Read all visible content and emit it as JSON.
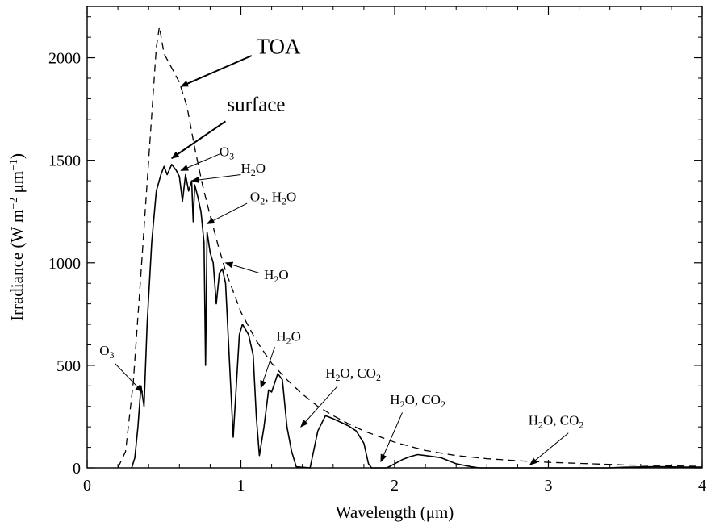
{
  "chart_data": {
    "type": "line",
    "title": "",
    "xlabel": "Wavelength (μm)",
    "ylabel_parts": {
      "main": "Irradiance (W m",
      "exp1": "−2",
      "mid": " μm",
      "exp2": "−1",
      "end": ")"
    },
    "xlim": [
      0,
      4
    ],
    "ylim": [
      0,
      2250
    ],
    "x_ticks": [
      0,
      1,
      2,
      3,
      4
    ],
    "y_ticks": [
      0,
      500,
      1000,
      1500,
      2000
    ],
    "grid": false,
    "series": [
      {
        "name": "TOA",
        "style": "dashed",
        "points": [
          [
            0.2,
            0
          ],
          [
            0.25,
            80
          ],
          [
            0.3,
            420
          ],
          [
            0.35,
            950
          ],
          [
            0.4,
            1500
          ],
          [
            0.45,
            2050
          ],
          [
            0.47,
            2150
          ],
          [
            0.5,
            2020
          ],
          [
            0.55,
            1950
          ],
          [
            0.6,
            1880
          ],
          [
            0.65,
            1760
          ],
          [
            0.7,
            1560
          ],
          [
            0.75,
            1380
          ],
          [
            0.8,
            1230
          ],
          [
            0.85,
            1090
          ],
          [
            0.9,
            960
          ],
          [
            0.95,
            860
          ],
          [
            1.0,
            760
          ],
          [
            1.1,
            620
          ],
          [
            1.2,
            510
          ],
          [
            1.3,
            430
          ],
          [
            1.4,
            360
          ],
          [
            1.5,
            300
          ],
          [
            1.6,
            255
          ],
          [
            1.7,
            215
          ],
          [
            1.8,
            180
          ],
          [
            2.0,
            125
          ],
          [
            2.2,
            85
          ],
          [
            2.4,
            60
          ],
          [
            2.6,
            45
          ],
          [
            2.8,
            35
          ],
          [
            3.0,
            27
          ],
          [
            3.5,
            14
          ],
          [
            4.0,
            7
          ]
        ]
      },
      {
        "name": "surface",
        "style": "solid",
        "points": [
          [
            0.29,
            0
          ],
          [
            0.31,
            50
          ],
          [
            0.33,
            200
          ],
          [
            0.35,
            400
          ],
          [
            0.37,
            300
          ],
          [
            0.39,
            700
          ],
          [
            0.42,
            1100
          ],
          [
            0.45,
            1350
          ],
          [
            0.48,
            1430
          ],
          [
            0.5,
            1470
          ],
          [
            0.52,
            1430
          ],
          [
            0.55,
            1480
          ],
          [
            0.58,
            1450
          ],
          [
            0.6,
            1420
          ],
          [
            0.62,
            1300
          ],
          [
            0.64,
            1430
          ],
          [
            0.66,
            1350
          ],
          [
            0.68,
            1400
          ],
          [
            0.69,
            1200
          ],
          [
            0.7,
            1380
          ],
          [
            0.72,
            1320
          ],
          [
            0.74,
            1250
          ],
          [
            0.76,
            1100
          ],
          [
            0.77,
            500
          ],
          [
            0.78,
            1150
          ],
          [
            0.8,
            1050
          ],
          [
            0.82,
            1000
          ],
          [
            0.84,
            800
          ],
          [
            0.86,
            950
          ],
          [
            0.88,
            970
          ],
          [
            0.9,
            900
          ],
          [
            0.92,
            600
          ],
          [
            0.94,
            300
          ],
          [
            0.95,
            150
          ],
          [
            0.97,
            400
          ],
          [
            0.99,
            650
          ],
          [
            1.01,
            700
          ],
          [
            1.05,
            650
          ],
          [
            1.08,
            550
          ],
          [
            1.1,
            250
          ],
          [
            1.12,
            60
          ],
          [
            1.15,
            200
          ],
          [
            1.18,
            380
          ],
          [
            1.2,
            370
          ],
          [
            1.24,
            460
          ],
          [
            1.27,
            430
          ],
          [
            1.3,
            200
          ],
          [
            1.33,
            80
          ],
          [
            1.36,
            5
          ],
          [
            1.45,
            0
          ],
          [
            1.5,
            180
          ],
          [
            1.55,
            255
          ],
          [
            1.6,
            240
          ],
          [
            1.7,
            205
          ],
          [
            1.75,
            180
          ],
          [
            1.8,
            120
          ],
          [
            1.83,
            20
          ],
          [
            1.85,
            0
          ],
          [
            1.95,
            0
          ],
          [
            2.0,
            20
          ],
          [
            2.05,
            40
          ],
          [
            2.1,
            55
          ],
          [
            2.15,
            65
          ],
          [
            2.2,
            60
          ],
          [
            2.3,
            50
          ],
          [
            2.4,
            20
          ],
          [
            2.5,
            5
          ],
          [
            2.55,
            0
          ],
          [
            3.4,
            0
          ],
          [
            3.5,
            3
          ],
          [
            3.7,
            6
          ],
          [
            3.9,
            4
          ],
          [
            4.0,
            4
          ]
        ]
      }
    ],
    "annotations": [
      {
        "id": "toa",
        "label": "TOA",
        "style": "big",
        "text_at": [
          1.1,
          2020
        ],
        "arrow_from": [
          1.07,
          2010
        ],
        "arrow_to": [
          0.61,
          1860
        ]
      },
      {
        "id": "surface",
        "label": "surface",
        "style": "mid",
        "text_at": [
          0.91,
          1740
        ],
        "arrow_from": [
          0.9,
          1690
        ],
        "arrow_to": [
          0.55,
          1510
        ]
      },
      {
        "id": "o3-vis",
        "base": "O",
        "sub": "3",
        "after": "",
        "text_at": [
          0.86,
          1520
        ],
        "arrow_from": [
          0.86,
          1530
        ],
        "arrow_to": [
          0.61,
          1450
        ]
      },
      {
        "id": "h2o-1",
        "base": "H",
        "sub": "2",
        "after": "O",
        "text_at": [
          1.0,
          1440
        ],
        "arrow_from": [
          1.0,
          1430
        ],
        "arrow_to": [
          0.68,
          1400
        ]
      },
      {
        "id": "o2-h2o",
        "base": "O",
        "sub": "2",
        "after": ", H",
        "sub2": "2",
        "after2": "O",
        "text_at": [
          1.06,
          1300
        ],
        "arrow_from": [
          1.04,
          1290
        ],
        "arrow_to": [
          0.78,
          1190
        ]
      },
      {
        "id": "h2o-2",
        "base": "H",
        "sub": "2",
        "after": "O",
        "text_at": [
          1.15,
          920
        ],
        "arrow_from": [
          1.12,
          950
        ],
        "arrow_to": [
          0.9,
          1000
        ]
      },
      {
        "id": "h2o-3",
        "base": "H",
        "sub": "2",
        "after": "O",
        "text_at": [
          1.23,
          620
        ],
        "arrow_from": [
          1.22,
          590
        ],
        "arrow_to": [
          1.13,
          390
        ]
      },
      {
        "id": "h2o-co2-1",
        "base": "H",
        "sub": "2",
        "after": "O, CO",
        "sub2": "2",
        "after2": "",
        "text_at": [
          1.55,
          440
        ],
        "arrow_from": [
          1.63,
          400
        ],
        "arrow_to": [
          1.39,
          200
        ]
      },
      {
        "id": "h2o-co2-2",
        "base": "H",
        "sub": "2",
        "after": "O, CO",
        "sub2": "2",
        "after2": "",
        "text_at": [
          1.97,
          310
        ],
        "arrow_from": [
          2.05,
          270
        ],
        "arrow_to": [
          1.91,
          30
        ]
      },
      {
        "id": "h2o-co2-3",
        "base": "H",
        "sub": "2",
        "after": "O, CO",
        "sub2": "2",
        "after2": "",
        "text_at": [
          2.87,
          210
        ],
        "arrow_from": [
          3.13,
          170
        ],
        "arrow_to": [
          2.88,
          15
        ]
      },
      {
        "id": "o3-uv",
        "base": "O",
        "sub": "3",
        "after": "",
        "text_at": [
          0.08,
          550
        ],
        "arrow_from": [
          0.18,
          510
        ],
        "arrow_to": [
          0.36,
          370
        ]
      }
    ]
  }
}
